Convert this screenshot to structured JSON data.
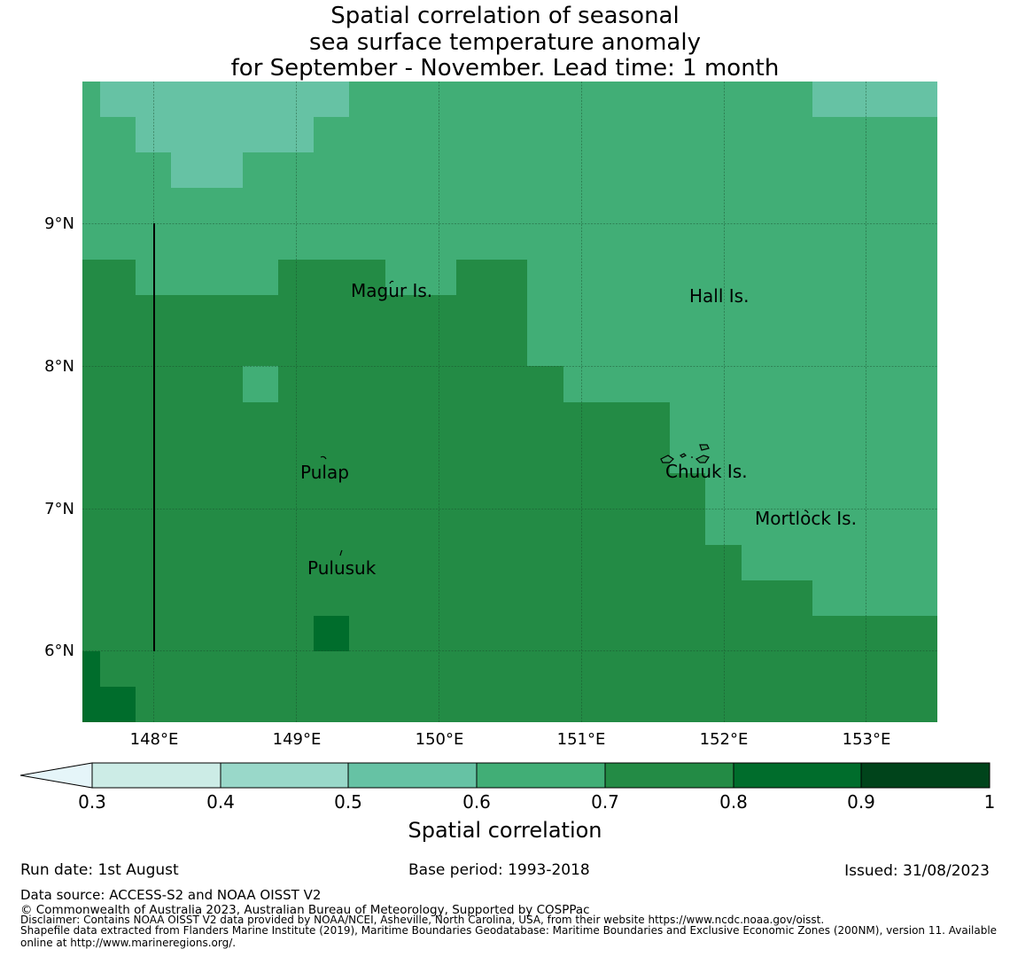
{
  "title": {
    "line1": "Spatial correlation of seasonal",
    "line2": "sea surface temperature anomaly",
    "line3": "for September - November. Lead time: 1 month"
  },
  "map": {
    "lon_range": [
      147.5,
      153.5
    ],
    "lat_range": [
      5.5,
      10.0
    ],
    "grid": true,
    "lon_ticks": [
      "148°E",
      "149°E",
      "150°E",
      "151°E",
      "152°E",
      "153°E"
    ],
    "lat_ticks": [
      "9°N",
      "8°N",
      "7°N",
      "6°N"
    ],
    "place_labels": [
      "Magur Is.",
      "Hall Is.",
      "Pulap",
      "Chuuk Is.",
      "Mortlock Is.",
      "Pulusuk"
    ]
  },
  "colorbar": {
    "title": "Spatial correlation",
    "tick_labels": [
      "0.3",
      "0.4",
      "0.5",
      "0.6",
      "0.7",
      "0.8",
      "0.9",
      "1"
    ],
    "colors": [
      "#e5f5f9",
      "#ccece6",
      "#99d8c9",
      "#66c2a4",
      "#41ae76",
      "#238b45",
      "#006d2c",
      "#00441b"
    ]
  },
  "footer": {
    "run_date": "Run date: 1st August",
    "base_period": "Base period: 1993-2018",
    "issued": "Issued: 31/08/2023",
    "data_source": "Data source: ACCESS-S2 and NOAA OISST V2",
    "copyright": "© Commonwealth of Australia 2023, Australian Bureau of Meteorology, Supported by COSPPac",
    "disclaimer": "Disclaimer: Contains NOAA OISST V2 data provided by NOAA/NCEI, Asheville, North Carolina, USA, from their website https://www.ncdc.noaa.gov/oisst.",
    "shapefile_1": "Shapefile data extracted from Flanders Marine Institute (2019), Maritime Boundaries Geodatabase: Maritime Boundaries and Exclusive Economic Zones (200NM), version 11. Available",
    "shapefile_2": "online at http://www.marineregions.org/."
  }
}
